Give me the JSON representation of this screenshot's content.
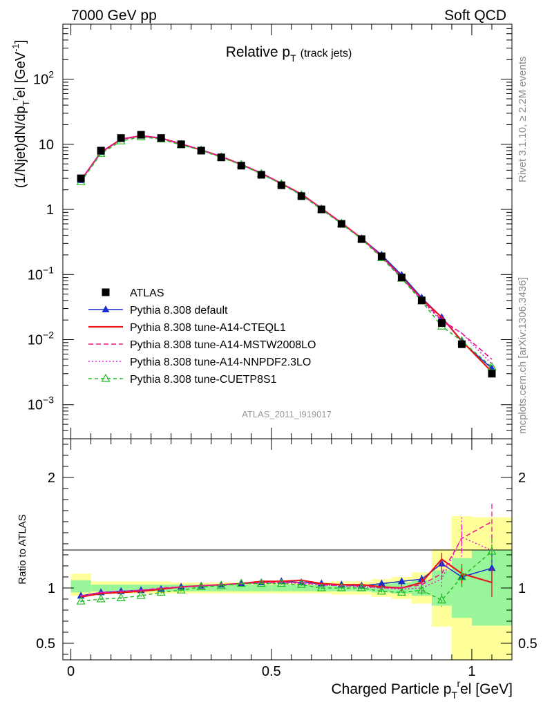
{
  "header": {
    "left": "7000 GeV pp",
    "right": "Soft QCD"
  },
  "side_text": {
    "rivet": "Rivet 3.1.10, ≥ 2.2M events",
    "mcplots": "mcplots.cern.ch [arXiv:1306.3436]"
  },
  "chart_data": [
    {
      "type": "line",
      "title_main": "Relative p",
      "title_sub": "T",
      "title_note": "(track jets)",
      "ylabel": "(1/Njet)dN/dp",
      "ylabel_sub": "T",
      "ylabel_sup": "r",
      "ylabel_rest": "el [GeV",
      "ylabel_unit_sup": "-1",
      "ylabel_close": "]",
      "yscale": "log",
      "ylim": [
        0.0003,
        700
      ],
      "xlim": [
        -0.02,
        1.1
      ],
      "watermark": "ATLAS_2011_I919017",
      "legend_position": "middle-left",
      "ytick_labels": [
        {
          "v": 100,
          "base": "10",
          "exp": "2"
        },
        {
          "v": 10,
          "base": "10",
          "exp": ""
        },
        {
          "v": 1,
          "base": "1",
          "exp": ""
        },
        {
          "v": 0.1,
          "base": "10",
          "exp": "−1"
        },
        {
          "v": 0.01,
          "base": "10",
          "exp": "−2"
        },
        {
          "v": 0.001,
          "base": "10",
          "exp": "−3"
        }
      ],
      "x": [
        0.025,
        0.075,
        0.125,
        0.175,
        0.225,
        0.275,
        0.325,
        0.375,
        0.425,
        0.475,
        0.525,
        0.575,
        0.625,
        0.675,
        0.725,
        0.775,
        0.825,
        0.875,
        0.925,
        0.975,
        1.05
      ],
      "series": [
        {
          "name": "ATLAS",
          "color": "#000000",
          "marker": "square",
          "values": [
            3.0,
            8.0,
            12.5,
            14.0,
            12.5,
            10.0,
            8.0,
            6.3,
            4.7,
            3.4,
            2.35,
            1.6,
            1.0,
            0.6,
            0.35,
            0.19,
            0.09,
            0.04,
            0.018,
            0.0085,
            0.003
          ]
        },
        {
          "name": "Pythia 8.308 default",
          "color": "#1a2fd0",
          "marker": "triangle",
          "dash": "",
          "values": [
            2.8,
            7.6,
            12.0,
            13.6,
            12.4,
            10.1,
            8.2,
            6.5,
            4.9,
            3.6,
            2.5,
            1.7,
            1.04,
            0.62,
            0.36,
            0.2,
            0.098,
            0.044,
            0.022,
            0.0093,
            0.0036
          ]
        },
        {
          "name": "Pythia 8.308 tune-A14-CTEQL1",
          "color": "#e8141a",
          "marker": "none",
          "dash": "",
          "values": [
            2.8,
            7.5,
            12.0,
            13.5,
            12.4,
            10.1,
            8.2,
            6.5,
            4.9,
            3.6,
            2.5,
            1.72,
            1.04,
            0.62,
            0.36,
            0.19,
            0.092,
            0.042,
            0.022,
            0.0095,
            0.0032
          ]
        },
        {
          "name": "Pythia 8.308 tune-A14-MSTW2008LO",
          "color": "#ee1288",
          "marker": "none",
          "dash": "7,4",
          "values": [
            2.8,
            7.6,
            12.0,
            13.6,
            12.5,
            10.2,
            8.2,
            6.5,
            4.9,
            3.6,
            2.5,
            1.7,
            1.03,
            0.61,
            0.36,
            0.19,
            0.09,
            0.041,
            0.02,
            0.0125,
            0.005
          ]
        },
        {
          "name": "Pythia 8.308 tune-A14-NNPDF2.3LO",
          "color": "#d81ed8",
          "marker": "none",
          "dash": "2,3",
          "values": [
            2.8,
            7.6,
            12.0,
            13.6,
            12.5,
            10.2,
            8.2,
            6.5,
            4.9,
            3.6,
            2.5,
            1.7,
            1.03,
            0.61,
            0.36,
            0.19,
            0.09,
            0.04,
            0.019,
            0.0125,
            0.0042
          ]
        },
        {
          "name": "Pythia 8.308 tune-CUETP8S1",
          "color": "#22bb22",
          "marker": "open-triangle",
          "dash": "5,4",
          "values": [
            2.65,
            7.2,
            11.2,
            13.0,
            12.0,
            9.8,
            8.1,
            6.3,
            4.85,
            3.5,
            2.45,
            1.65,
            1.0,
            0.6,
            0.35,
            0.18,
            0.087,
            0.039,
            0.016,
            0.0095,
            0.0038
          ]
        }
      ]
    },
    {
      "type": "line",
      "ylabel": "Ratio to ATLAS",
      "xlabel_main": "Charged Particle p",
      "xlabel_sub": "T",
      "xlabel_sup": "r",
      "xlabel_rest": "el [GeV]",
      "ylim": [
        0.35,
        2.35
      ],
      "xlim": [
        -0.02,
        1.1
      ],
      "ytick_labels": [
        {
          "v": 2,
          "text": "2"
        },
        {
          "v": 1,
          "text": "1"
        },
        {
          "v": 0.5,
          "text": "0.5"
        }
      ],
      "xtick_labels": [
        {
          "v": 0,
          "text": "0"
        },
        {
          "v": 0.5,
          "text": "0.5"
        },
        {
          "v": 1,
          "text": "1"
        }
      ],
      "bins": [
        0.0,
        0.05,
        0.1,
        0.15,
        0.2,
        0.25,
        0.3,
        0.35,
        0.4,
        0.45,
        0.5,
        0.55,
        0.6,
        0.65,
        0.7,
        0.75,
        0.8,
        0.85,
        0.9,
        0.95,
        1.0,
        1.1
      ],
      "band_total": [
        [
          0.93,
          1.13
        ],
        [
          0.95,
          1.06
        ],
        [
          0.95,
          1.06
        ],
        [
          0.95,
          1.06
        ],
        [
          0.95,
          1.06
        ],
        [
          0.95,
          1.05
        ],
        [
          0.95,
          1.05
        ],
        [
          0.95,
          1.05
        ],
        [
          0.95,
          1.05
        ],
        [
          0.95,
          1.05
        ],
        [
          0.95,
          1.05
        ],
        [
          0.95,
          1.05
        ],
        [
          0.95,
          1.05
        ],
        [
          0.94,
          1.06
        ],
        [
          0.94,
          1.06
        ],
        [
          0.92,
          1.08
        ],
        [
          0.9,
          1.1
        ],
        [
          0.86,
          1.14
        ],
        [
          0.65,
          1.35
        ],
        [
          0.35,
          1.65
        ],
        [
          0.35,
          1.64
        ]
      ],
      "band_stat": [
        [
          0.96,
          1.07
        ],
        [
          0.97,
          1.03
        ],
        [
          0.97,
          1.03
        ],
        [
          0.97,
          1.03
        ],
        [
          0.97,
          1.03
        ],
        [
          0.97,
          1.03
        ],
        [
          0.97,
          1.03
        ],
        [
          0.97,
          1.03
        ],
        [
          0.97,
          1.03
        ],
        [
          0.97,
          1.03
        ],
        [
          0.97,
          1.03
        ],
        [
          0.97,
          1.03
        ],
        [
          0.97,
          1.03
        ],
        [
          0.97,
          1.03
        ],
        [
          0.97,
          1.03
        ],
        [
          0.96,
          1.04
        ],
        [
          0.95,
          1.05
        ],
        [
          0.93,
          1.07
        ],
        [
          0.84,
          1.16
        ],
        [
          0.73,
          1.27
        ],
        [
          0.66,
          1.34
        ]
      ],
      "x": [
        0.025,
        0.075,
        0.125,
        0.175,
        0.225,
        0.275,
        0.325,
        0.375,
        0.425,
        0.475,
        0.525,
        0.575,
        0.625,
        0.675,
        0.725,
        0.775,
        0.825,
        0.875,
        0.925,
        0.975,
        1.05
      ],
      "series": [
        {
          "name": "Pythia 8.308 default",
          "color": "#1a2fd0",
          "marker": "triangle",
          "dash": "",
          "values": [
            0.93,
            0.96,
            0.97,
            0.98,
            0.99,
            1.01,
            1.02,
            1.03,
            1.04,
            1.05,
            1.06,
            1.05,
            1.04,
            1.03,
            1.02,
            1.04,
            1.06,
            1.08,
            1.22,
            1.1,
            1.18
          ],
          "errors": [
            0.01,
            0.01,
            0.01,
            0.01,
            0.01,
            0.01,
            0.01,
            0.01,
            0.01,
            0.01,
            0.01,
            0.01,
            0.01,
            0.01,
            0.02,
            0.02,
            0.03,
            0.04,
            0.06,
            0.09,
            0.13
          ]
        },
        {
          "name": "Pythia 8.308 tune-A14-CTEQL1",
          "color": "#e8141a",
          "marker": "none",
          "dash": "",
          "values": [
            0.92,
            0.95,
            0.96,
            0.97,
            0.99,
            1.01,
            1.02,
            1.03,
            1.04,
            1.06,
            1.06,
            1.07,
            1.04,
            1.03,
            1.03,
            1.01,
            1.0,
            1.05,
            1.26,
            1.13,
            1.05
          ],
          "errors": [
            0.01,
            0.01,
            0.01,
            0.01,
            0.01,
            0.01,
            0.01,
            0.01,
            0.01,
            0.01,
            0.01,
            0.01,
            0.01,
            0.01,
            0.02,
            0.02,
            0.03,
            0.04,
            0.06,
            0.09,
            0.13
          ]
        },
        {
          "name": "Pythia 8.308 tune-A14-MSTW2008LO",
          "color": "#ee1288",
          "marker": "none",
          "dash": "7,4",
          "values": [
            0.93,
            0.96,
            0.97,
            0.98,
            1.0,
            1.01,
            1.02,
            1.03,
            1.04,
            1.05,
            1.05,
            1.05,
            1.03,
            1.02,
            1.02,
            1.0,
            1.0,
            1.03,
            1.13,
            1.45,
            1.6
          ],
          "errors": [
            0.01,
            0.01,
            0.01,
            0.01,
            0.01,
            0.01,
            0.01,
            0.01,
            0.01,
            0.01,
            0.01,
            0.01,
            0.01,
            0.01,
            0.02,
            0.02,
            0.03,
            0.04,
            0.06,
            0.12,
            0.16
          ]
        },
        {
          "name": "Pythia 8.308 tune-A14-NNPDF2.3LO",
          "color": "#d81ed8",
          "marker": "none",
          "dash": "2,3",
          "values": [
            0.93,
            0.96,
            0.97,
            0.98,
            1.0,
            1.01,
            1.02,
            1.03,
            1.04,
            1.04,
            1.05,
            1.04,
            1.03,
            1.02,
            1.01,
            1.0,
            0.99,
            1.0,
            1.08,
            1.46,
            1.34
          ],
          "errors": [
            0.01,
            0.01,
            0.01,
            0.01,
            0.01,
            0.01,
            0.01,
            0.01,
            0.01,
            0.01,
            0.01,
            0.01,
            0.01,
            0.01,
            0.02,
            0.02,
            0.03,
            0.04,
            0.07,
            0.18,
            0.14
          ]
        },
        {
          "name": "Pythia 8.308 tune-CUETP8S1",
          "color": "#22bb22",
          "marker": "open-triangle",
          "dash": "5,4",
          "values": [
            0.88,
            0.9,
            0.91,
            0.93,
            0.96,
            0.98,
            1.01,
            1.02,
            1.04,
            1.04,
            1.04,
            1.03,
            1.0,
            1.0,
            1.0,
            0.97,
            0.96,
            0.98,
            0.89,
            1.1,
            1.33
          ],
          "errors": [
            0.01,
            0.01,
            0.01,
            0.01,
            0.01,
            0.01,
            0.01,
            0.01,
            0.01,
            0.01,
            0.01,
            0.01,
            0.01,
            0.01,
            0.02,
            0.02,
            0.03,
            0.04,
            0.06,
            0.11,
            0.12
          ]
        }
      ]
    }
  ]
}
